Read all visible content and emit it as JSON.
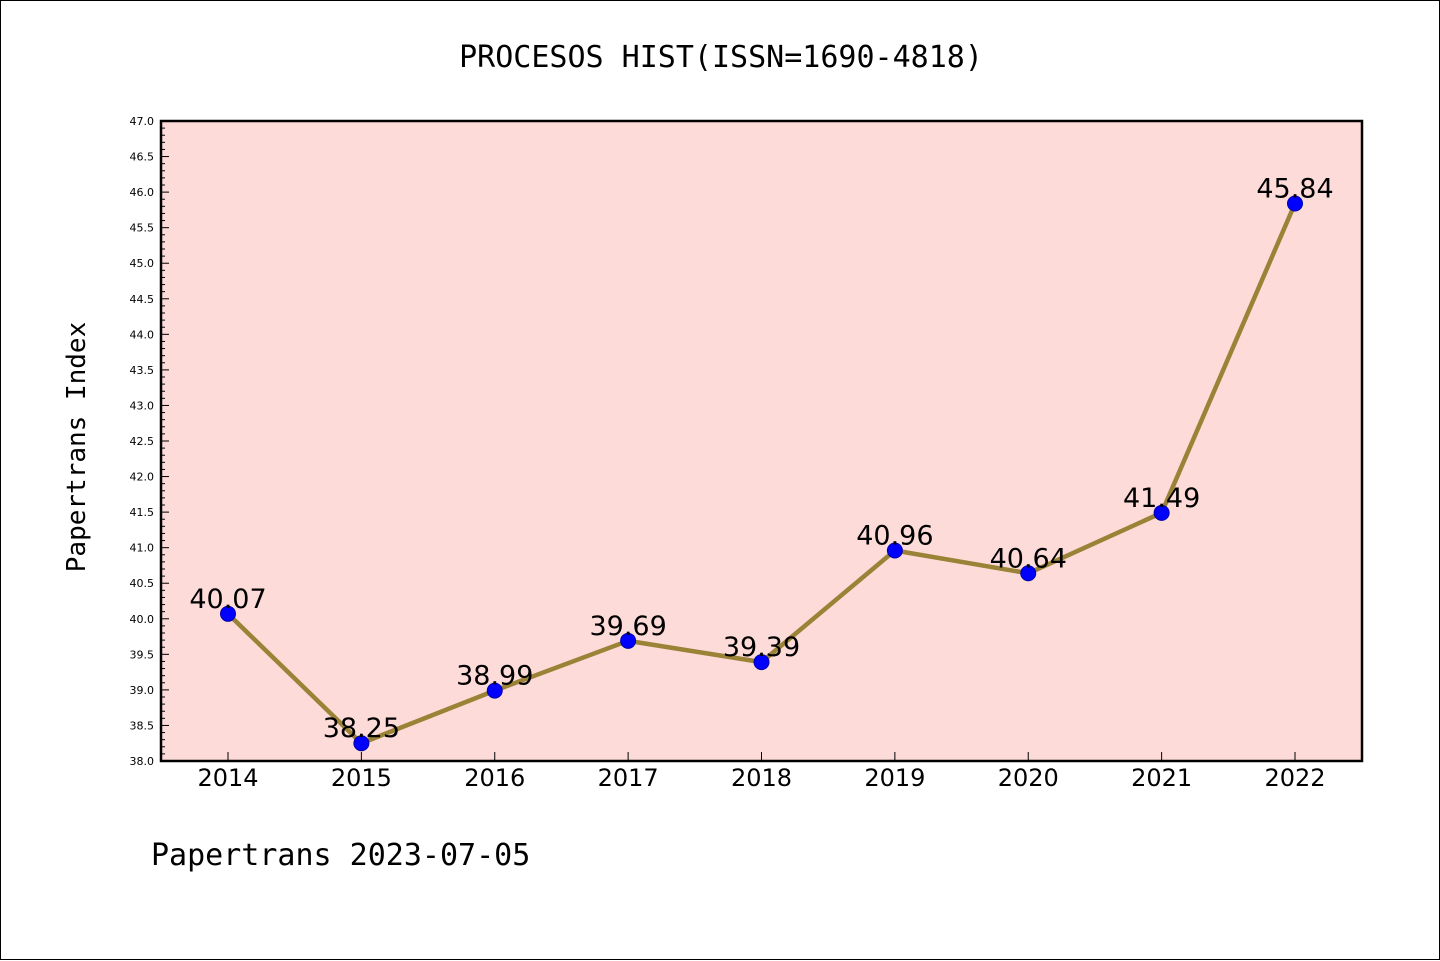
{
  "chart_data": {
    "type": "line",
    "title": "PROCESOS HIST(ISSN=1690-4818)",
    "ylabel": "Papertrans Index",
    "xlabel": "",
    "footer": "Papertrans 2023-07-05",
    "categories": [
      "2014",
      "2015",
      "2016",
      "2017",
      "2018",
      "2019",
      "2020",
      "2021",
      "2022"
    ],
    "values": [
      40.07,
      38.25,
      38.99,
      39.69,
      39.39,
      40.96,
      40.64,
      41.49,
      45.84
    ],
    "data_labels": [
      "40.07",
      "38.25",
      "38.99",
      "39.69",
      "39.39",
      "40.96",
      "40.64",
      "41.49",
      "45.84"
    ],
    "ylim": [
      38.0,
      47.0
    ],
    "ytick_step": 0.5,
    "ytick_minor_step": 0.1,
    "grid": false,
    "colors": {
      "plot_background": "#fddbd8",
      "line": "#9a8236",
      "marker": "#0000ff"
    }
  }
}
